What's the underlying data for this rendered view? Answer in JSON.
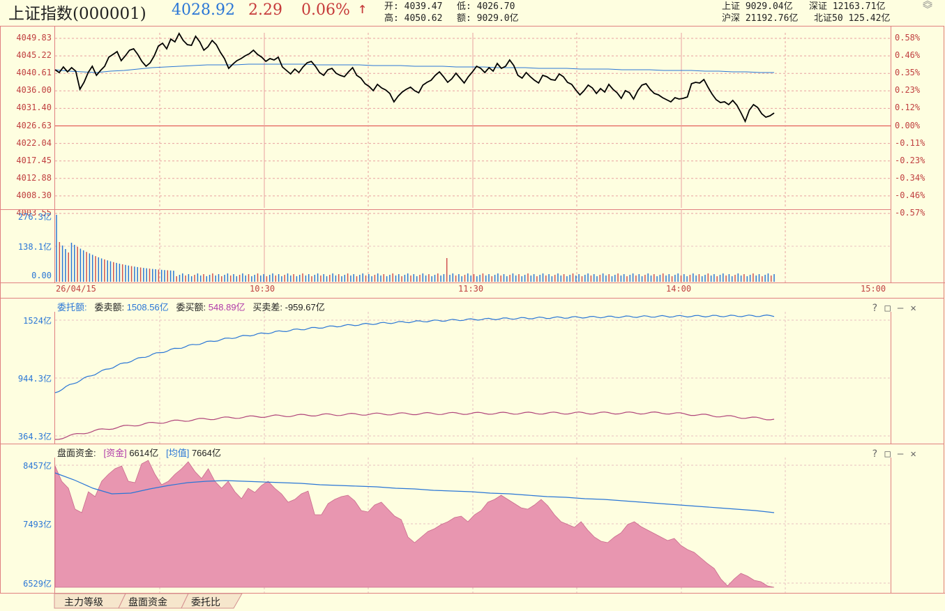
{
  "header": {
    "title": "上证指数(000001)",
    "price": "4028.92",
    "change": "2.29",
    "change_pct": "0.06%",
    "arrow": "↑",
    "open": "开: 4039.47",
    "low": "低: 4026.70",
    "high": "高: 4050.62",
    "amount": "额: 9029.0亿",
    "sh": "上证  9029.04亿",
    "sz": "深证  12163.71亿",
    "hs": "沪深  21192.76亿",
    "bz": "北证50  125.42亿"
  },
  "price_chart": {
    "y_labels": [
      "4049.83",
      "4045.22",
      "4040.61",
      "4036.00",
      "4031.40",
      "4026.63",
      "4022.04",
      "4017.45",
      "4012.88",
      "4008.30",
      "4003.55"
    ],
    "pct_labels": [
      "0.58%",
      "0.46%",
      "0.35%",
      "0.23%",
      "0.12%",
      "0.00%",
      "-0.11%",
      "-0.23%",
      "-0.34%",
      "-0.46%",
      "-0.57%"
    ],
    "vol_labels": [
      "276.3亿",
      "138.1亿",
      "0.00"
    ],
    "time_labels": [
      "26/04/15",
      "10:30",
      "11:30",
      "14:00",
      "15:00"
    ],
    "colors": {
      "price": "#000000",
      "avg": "#2a76d6",
      "base": "#e04040",
      "grid": "#e08080"
    }
  },
  "panel2": {
    "legend": "委托额:",
    "sell": "委卖额: ",
    "sell_val": "1508.56亿",
    "buy": "委买额: ",
    "buy_val": "548.89亿",
    "diff": "买卖差: -959.67亿",
    "y_labels": [
      "1524亿",
      "944.3亿",
      "364.3亿"
    ]
  },
  "panel3": {
    "legend": "盘面资金:",
    "fund_tag": "[资金]",
    "fund_val": "6614亿",
    "avg_tag": "[均值]",
    "avg_val": "7664亿",
    "y_labels": [
      "8457亿",
      "7493亿",
      "6529亿"
    ]
  },
  "tabs": [
    "主力等级",
    "盘面资金",
    "委托比"
  ],
  "icons": {
    "help": "?",
    "max": "□",
    "min": "—",
    "close": "✕"
  }
}
